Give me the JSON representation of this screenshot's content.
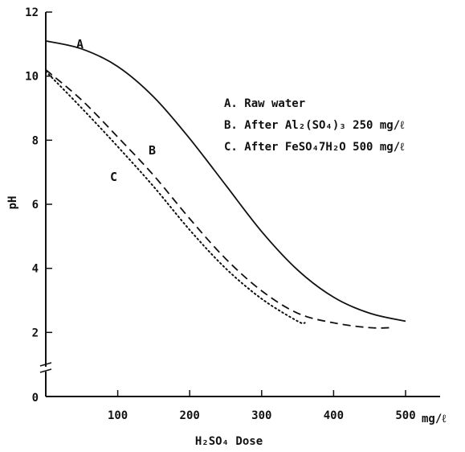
{
  "chart_data": {
    "type": "line",
    "xlabel": "H₂SO₄  Dose",
    "ylabel": "pH",
    "xlim": [
      0,
      500
    ],
    "ylim": [
      0,
      12
    ],
    "x_unit_label": "mg/ℓ",
    "x_ticks": [
      100,
      200,
      300,
      400,
      500
    ],
    "y_ticks": [
      2,
      4,
      6,
      8,
      10,
      12
    ],
    "y_origin_label": "0",
    "grid": false,
    "legend_position": "top-right",
    "legend": [
      "A. Raw water",
      "B. After Al₂(SO₄)₃ 250 mg/ℓ",
      "C. After FeSO₄7H₂O 500 mg/ℓ"
    ],
    "series": [
      {
        "name": "A",
        "style": "solid",
        "x": [
          0,
          50,
          100,
          150,
          200,
          250,
          300,
          350,
          400,
          450,
          500
        ],
        "y": [
          11.1,
          10.85,
          10.3,
          9.35,
          8.05,
          6.6,
          5.15,
          3.95,
          3.1,
          2.6,
          2.35
        ]
      },
      {
        "name": "B",
        "style": "dashed",
        "x": [
          0,
          50,
          100,
          150,
          200,
          250,
          300,
          350,
          400,
          450,
          480
        ],
        "y": [
          10.2,
          9.25,
          8.1,
          6.9,
          5.55,
          4.3,
          3.3,
          2.6,
          2.3,
          2.15,
          2.15
        ]
      },
      {
        "name": "C",
        "style": "dotted",
        "x": [
          0,
          50,
          100,
          150,
          200,
          250,
          300,
          350,
          360
        ],
        "y": [
          10.15,
          9.0,
          7.8,
          6.55,
          5.2,
          4.0,
          3.05,
          2.35,
          2.3
        ]
      }
    ]
  }
}
